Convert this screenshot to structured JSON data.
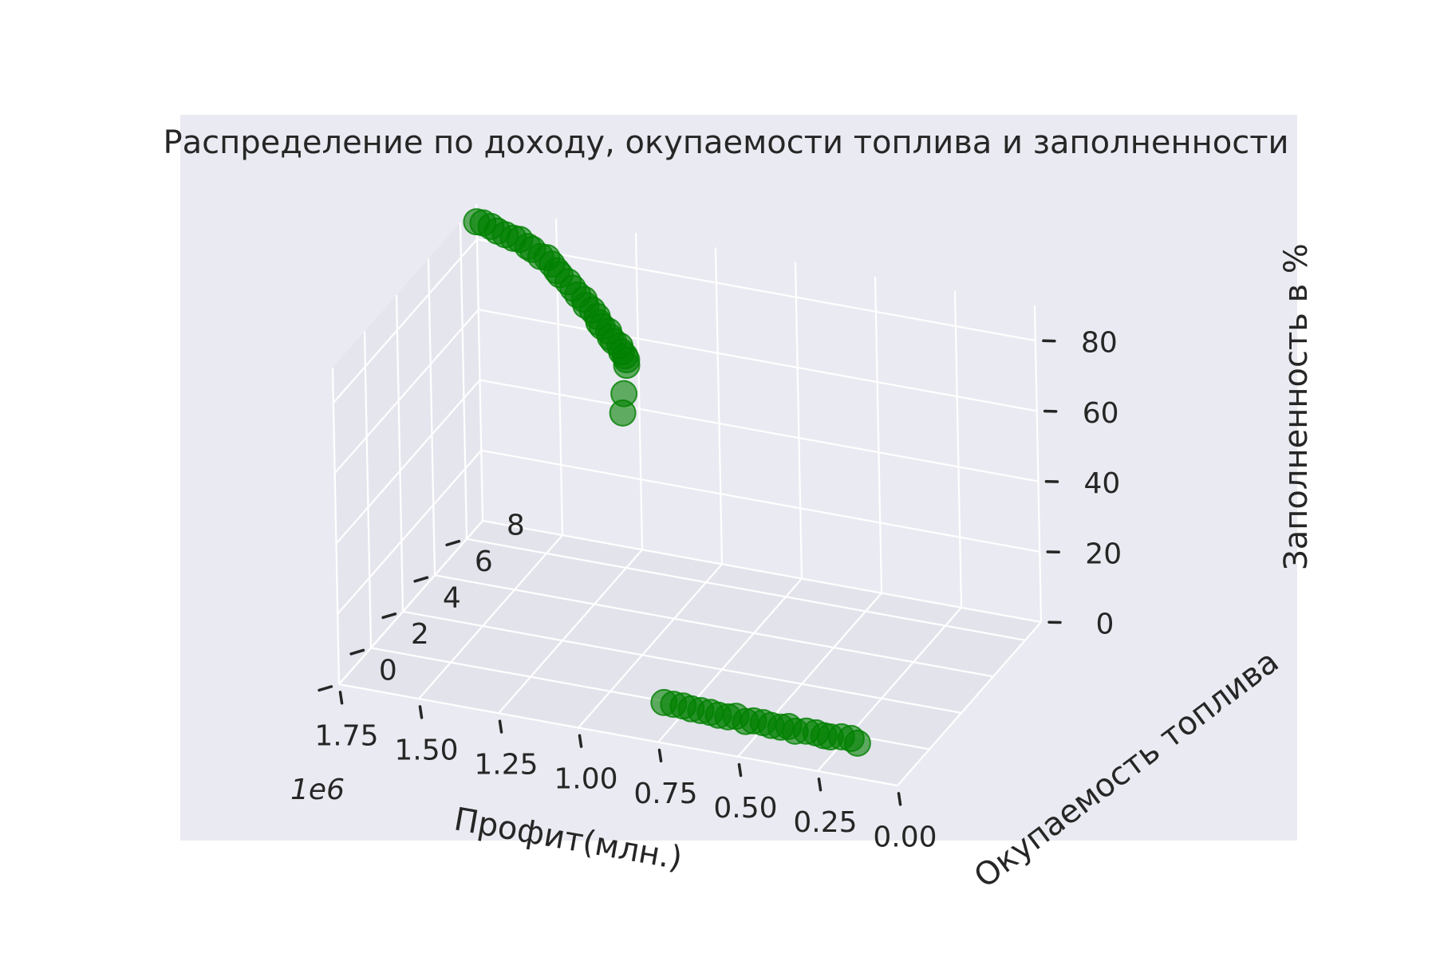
{
  "chart_data": {
    "type": "scatter",
    "projection": "3d",
    "title": "Распределение по доходу, окупаемости топлива и заполненности",
    "xlabel": "Профит(млн.)",
    "ylabel": "Окупаемость топлива",
    "zlabel": "Заполненность в %",
    "x_offset_label": "1e6",
    "xlim": [
      0,
      1750000
    ],
    "ylim": [
      0,
      9
    ],
    "zlim": [
      0,
      90
    ],
    "x_ticks": [
      1750000,
      1500000,
      1250000,
      1000000,
      750000,
      500000,
      250000,
      0
    ],
    "x_tick_labels": [
      "1.75",
      "1.50",
      "1.25",
      "1.00",
      "0.75",
      "0.50",
      "0.25",
      "0.00"
    ],
    "y_ticks": [
      0,
      2,
      4,
      6,
      8
    ],
    "y_tick_labels": [
      "0",
      "2",
      "4",
      "6",
      "8"
    ],
    "z_ticks": [
      0,
      20,
      40,
      60,
      80
    ],
    "z_tick_labels": [
      "0",
      "20",
      "40",
      "60",
      "80"
    ],
    "grid": true,
    "legend": "none",
    "colors": {
      "marker": "#008000",
      "pane": "#eaeaf2",
      "pane_side": "#e5e5ee",
      "pane_floor": "#e3e3ec",
      "grid": "#ffffff",
      "text": "#262626"
    },
    "series": [
      {
        "marker": "o",
        "alpha": 0.6,
        "points": [
          [
            1750000,
            9.0,
            85
          ],
          [
            1730000,
            9.0,
            85
          ],
          [
            1700000,
            8.9,
            85
          ],
          [
            1680000,
            8.9,
            84
          ],
          [
            1650000,
            8.8,
            84
          ],
          [
            1620000,
            8.7,
            84
          ],
          [
            1600000,
            8.7,
            84
          ],
          [
            1570000,
            8.6,
            83
          ],
          [
            1550000,
            8.5,
            83
          ],
          [
            1520000,
            8.4,
            82
          ],
          [
            1500000,
            8.4,
            82
          ],
          [
            1480000,
            8.3,
            81
          ],
          [
            1460000,
            8.2,
            80
          ],
          [
            1450000,
            8.2,
            79
          ],
          [
            1420000,
            8.1,
            78
          ],
          [
            1400000,
            8.0,
            77
          ],
          [
            1380000,
            7.9,
            76
          ],
          [
            1360000,
            7.9,
            75
          ],
          [
            1350000,
            7.8,
            74
          ],
          [
            1330000,
            7.8,
            73
          ],
          [
            1310000,
            7.7,
            72
          ],
          [
            1300000,
            7.6,
            71
          ],
          [
            1290000,
            7.6,
            70
          ],
          [
            1270000,
            7.6,
            69
          ],
          [
            1260000,
            7.5,
            68
          ],
          [
            1250000,
            7.5,
            67
          ],
          [
            1230000,
            7.5,
            66
          ],
          [
            1220000,
            7.4,
            65
          ],
          [
            1210000,
            7.4,
            64
          ],
          [
            1205000,
            7.4,
            63
          ],
          [
            1200000,
            7.3,
            62
          ],
          [
            1200000,
            7.1,
            55
          ],
          [
            1200000,
            7.0,
            50
          ],
          [
            760000,
            0.6,
            8
          ],
          [
            730000,
            0.6,
            8
          ],
          [
            700000,
            0.6,
            8
          ],
          [
            680000,
            0.7,
            7
          ],
          [
            650000,
            0.7,
            7
          ],
          [
            620000,
            0.7,
            7
          ],
          [
            600000,
            0.8,
            6
          ],
          [
            570000,
            0.8,
            6
          ],
          [
            550000,
            0.9,
            6
          ],
          [
            520000,
            0.9,
            5
          ],
          [
            500000,
            1.0,
            5
          ],
          [
            470000,
            1.0,
            5
          ],
          [
            450000,
            1.1,
            4
          ],
          [
            420000,
            1.1,
            4
          ],
          [
            400000,
            1.2,
            4
          ],
          [
            380000,
            1.2,
            3
          ],
          [
            350000,
            1.3,
            3
          ],
          [
            320000,
            1.3,
            3
          ],
          [
            300000,
            1.4,
            2
          ],
          [
            280000,
            1.4,
            2
          ],
          [
            250000,
            1.5,
            2
          ],
          [
            220000,
            1.5,
            2
          ],
          [
            200000,
            1.5,
            1
          ]
        ]
      }
    ]
  }
}
